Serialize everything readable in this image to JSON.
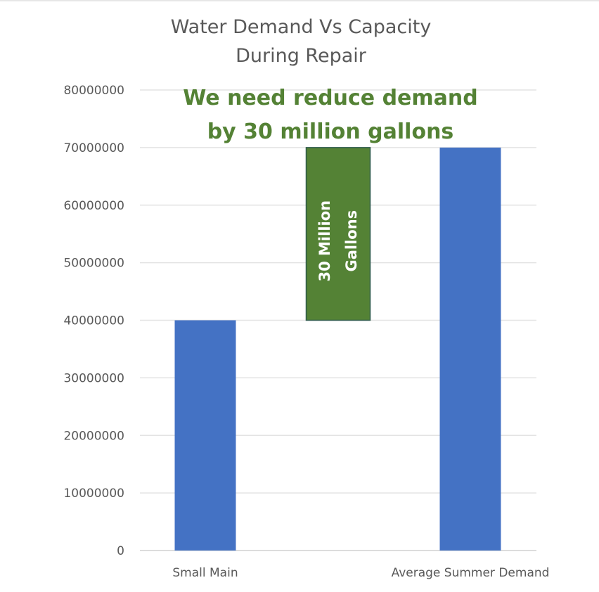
{
  "chart_data": {
    "type": "bar",
    "title": [
      "Water Demand Vs Capacity",
      "During Repair"
    ],
    "xlabel": "",
    "ylabel": "",
    "categories": [
      "Small Main",
      "Average Summer Demand"
    ],
    "series": [
      {
        "name": "Gallons",
        "values": [
          40000000,
          70000000
        ],
        "color": "#4472C4"
      }
    ],
    "ylim": [
      0,
      80000000
    ],
    "yticks": [
      0,
      10000000,
      20000000,
      30000000,
      40000000,
      50000000,
      60000000,
      70000000,
      80000000
    ],
    "ytick_labels": [
      "0",
      "10000000",
      "20000000",
      "30000000",
      "40000000",
      "50000000",
      "60000000",
      "70000000",
      "80000000"
    ],
    "grid": true,
    "legend": "none",
    "gap_box": {
      "from": 40000000,
      "to": 70000000,
      "label": [
        "30 Million",
        "Gallons"
      ],
      "color": "#548235",
      "border": "#2e5a4a"
    },
    "annotation": {
      "lines": [
        "We need reduce demand",
        "by 30 million gallons"
      ],
      "color": "#548235"
    }
  }
}
